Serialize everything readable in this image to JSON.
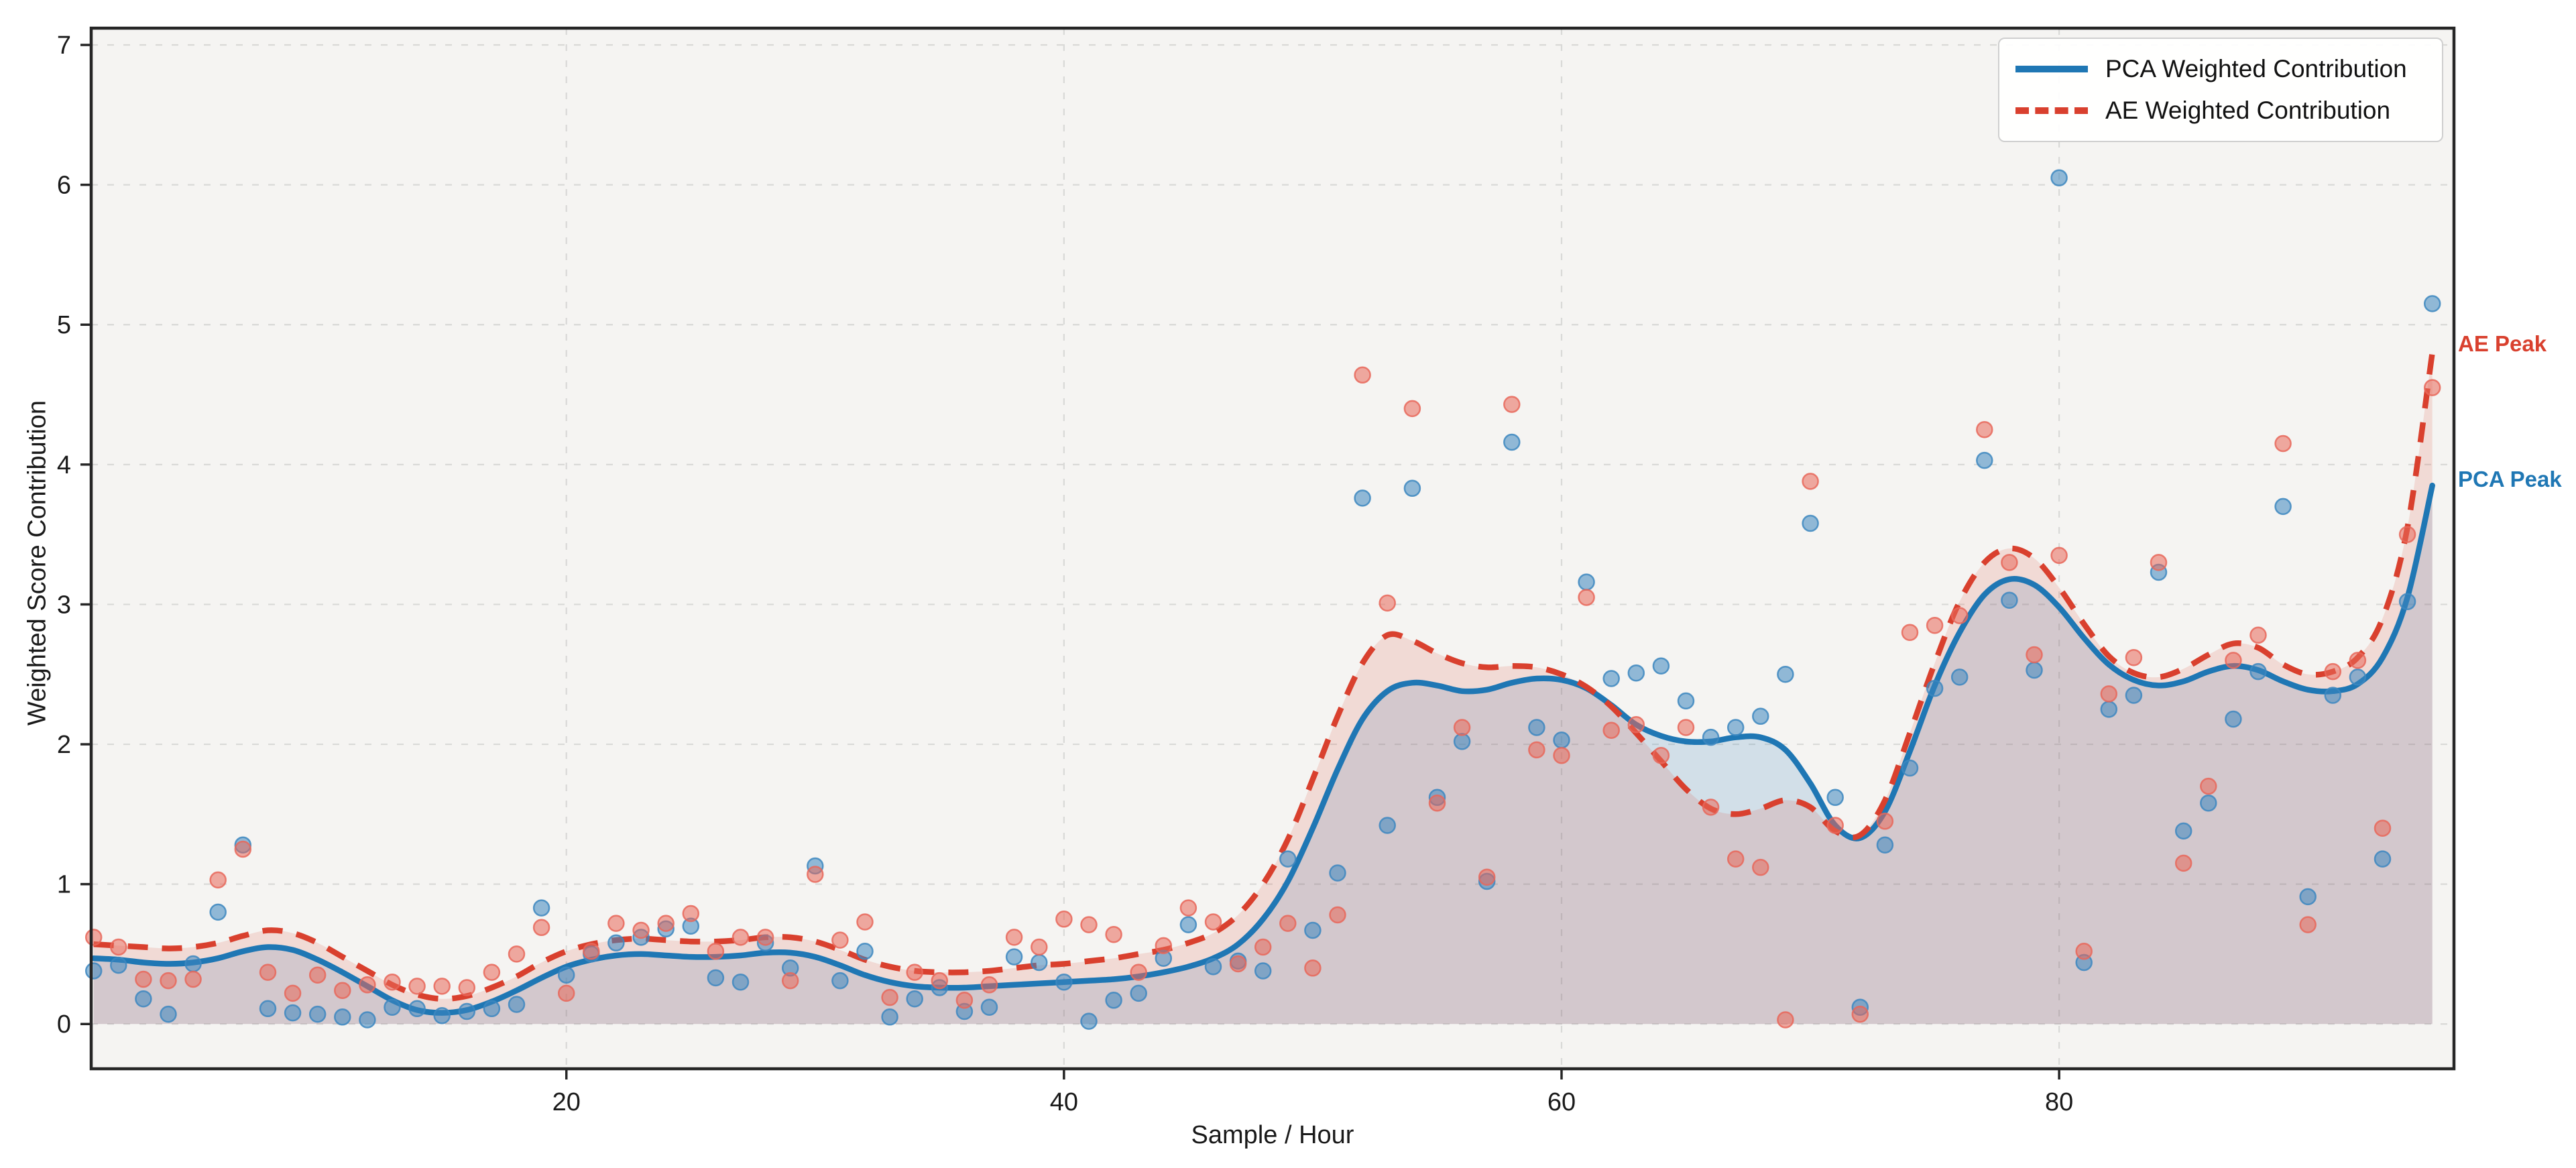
{
  "figure": {
    "background": "#ffffff",
    "plot_background": "#f5f4f2",
    "grid_color": "#d9d9d7",
    "spine_color": "#262626"
  },
  "legend": {
    "items": [
      {
        "label": "PCA Weighted Contribution",
        "style": "solid",
        "color": "#1f77b4"
      },
      {
        "label": "AE Weighted Contribution",
        "style": "dashed",
        "color": "#d9402e"
      }
    ]
  },
  "chart_data": {
    "type": "line",
    "subtype": "smoothed trend lines with jittered scatter and area fills",
    "title": "",
    "xlabel": "Sample / Hour",
    "ylabel": "Weighted Score Contribution",
    "xlim": [
      0.9,
      95.87
    ],
    "ylim": [
      -0.32,
      7.12
    ],
    "xticks": [
      20,
      40,
      60,
      80
    ],
    "yticks": [
      0,
      1,
      2,
      3,
      4,
      5,
      6,
      7
    ],
    "grid": true,
    "legend_position": "upper right",
    "x": [
      1,
      2,
      3,
      4,
      5,
      6,
      7,
      8,
      9,
      10,
      11,
      12,
      13,
      14,
      15,
      16,
      17,
      18,
      19,
      20,
      21,
      22,
      23,
      24,
      25,
      26,
      27,
      28,
      29,
      30,
      31,
      32,
      33,
      34,
      35,
      36,
      37,
      38,
      39,
      40,
      41,
      42,
      43,
      44,
      45,
      46,
      47,
      48,
      49,
      50,
      51,
      52,
      53,
      54,
      55,
      56,
      57,
      58,
      59,
      60,
      61,
      62,
      63,
      64,
      65,
      66,
      67,
      68,
      69,
      70,
      71,
      72,
      73,
      74,
      75,
      76,
      77,
      78,
      79,
      80,
      81,
      82,
      83,
      84,
      85,
      86,
      87,
      88,
      89,
      90,
      91,
      92,
      93,
      94,
      95
    ],
    "series": [
      {
        "name": "PCA Weighted Contribution",
        "line_color": "#1f77b4",
        "line_style": "solid",
        "marker_color": "#3d87bf",
        "fill_opacity": 0.16,
        "trend": [
          0.47,
          0.46,
          0.44,
          0.43,
          0.44,
          0.47,
          0.52,
          0.55,
          0.53,
          0.46,
          0.37,
          0.27,
          0.17,
          0.1,
          0.08,
          0.1,
          0.16,
          0.24,
          0.33,
          0.41,
          0.46,
          0.49,
          0.5,
          0.49,
          0.48,
          0.48,
          0.49,
          0.51,
          0.51,
          0.48,
          0.42,
          0.35,
          0.3,
          0.27,
          0.26,
          0.26,
          0.27,
          0.28,
          0.29,
          0.3,
          0.31,
          0.32,
          0.34,
          0.37,
          0.41,
          0.47,
          0.57,
          0.75,
          1.02,
          1.4,
          1.82,
          2.18,
          2.38,
          2.44,
          2.42,
          2.38,
          2.39,
          2.44,
          2.47,
          2.46,
          2.4,
          2.28,
          2.14,
          2.06,
          2.02,
          2.02,
          2.05,
          2.05,
          1.96,
          1.72,
          1.42,
          1.33,
          1.52,
          1.95,
          2.42,
          2.8,
          3.07,
          3.18,
          3.14,
          2.98,
          2.76,
          2.57,
          2.46,
          2.42,
          2.45,
          2.52,
          2.56,
          2.53,
          2.45,
          2.39,
          2.38,
          2.43,
          2.62,
          3.05,
          3.85
        ],
        "scatter": [
          0.38,
          0.42,
          0.18,
          0.07,
          0.43,
          0.8,
          1.28,
          0.11,
          0.08,
          0.07,
          0.05,
          0.03,
          0.12,
          0.11,
          0.06,
          0.09,
          0.11,
          0.14,
          0.83,
          0.35,
          0.5,
          0.58,
          0.62,
          0.68,
          0.7,
          0.33,
          0.3,
          0.58,
          0.4,
          1.13,
          0.31,
          0.52,
          0.05,
          0.18,
          0.26,
          0.09,
          0.12,
          0.48,
          0.44,
          0.3,
          0.02,
          0.17,
          0.22,
          0.47,
          0.71,
          0.41,
          0.45,
          0.38,
          1.18,
          0.67,
          1.08,
          3.76,
          1.42,
          3.83,
          1.62,
          2.02,
          1.02,
          4.16,
          2.12,
          2.03,
          3.16,
          2.47,
          2.51,
          2.56,
          2.31,
          2.05,
          2.12,
          2.2,
          2.5,
          3.58,
          1.62,
          0.12,
          1.28,
          1.83,
          2.4,
          2.48,
          4.03,
          3.03,
          2.53,
          6.05,
          0.44,
          2.25,
          2.35,
          3.23,
          1.38,
          1.58,
          2.18,
          2.52,
          3.7,
          0.91,
          2.35,
          2.48,
          1.18,
          3.02,
          5.15
        ]
      },
      {
        "name": "AE Weighted Contribution",
        "line_color": "#d9402e",
        "line_style": "dashed",
        "marker_color": "#e8675a",
        "fill_opacity": 0.14,
        "trend": [
          0.57,
          0.56,
          0.55,
          0.54,
          0.55,
          0.58,
          0.63,
          0.67,
          0.65,
          0.58,
          0.48,
          0.38,
          0.28,
          0.21,
          0.18,
          0.2,
          0.26,
          0.34,
          0.44,
          0.52,
          0.57,
          0.6,
          0.61,
          0.6,
          0.59,
          0.59,
          0.6,
          0.62,
          0.62,
          0.59,
          0.53,
          0.46,
          0.41,
          0.38,
          0.37,
          0.37,
          0.38,
          0.4,
          0.42,
          0.43,
          0.45,
          0.47,
          0.5,
          0.53,
          0.58,
          0.65,
          0.78,
          1.0,
          1.32,
          1.75,
          2.2,
          2.58,
          2.78,
          2.74,
          2.65,
          2.58,
          2.55,
          2.56,
          2.55,
          2.5,
          2.41,
          2.27,
          2.08,
          1.88,
          1.68,
          1.54,
          1.5,
          1.54,
          1.6,
          1.55,
          1.38,
          1.35,
          1.6,
          2.08,
          2.58,
          3.02,
          3.3,
          3.4,
          3.33,
          3.12,
          2.86,
          2.63,
          2.51,
          2.48,
          2.54,
          2.64,
          2.72,
          2.69,
          2.57,
          2.5,
          2.52,
          2.62,
          2.9,
          3.55,
          4.8
        ],
        "scatter": [
          0.62,
          0.55,
          0.32,
          0.31,
          0.32,
          1.03,
          1.25,
          0.37,
          0.22,
          0.35,
          0.24,
          0.28,
          0.3,
          0.27,
          0.27,
          0.26,
          0.37,
          0.5,
          0.69,
          0.22,
          0.52,
          0.72,
          0.67,
          0.72,
          0.79,
          0.52,
          0.62,
          0.62,
          0.31,
          1.07,
          0.6,
          0.73,
          0.19,
          0.37,
          0.31,
          0.17,
          0.28,
          0.62,
          0.55,
          0.75,
          0.71,
          0.64,
          0.37,
          0.56,
          0.83,
          0.73,
          0.43,
          0.55,
          0.72,
          0.4,
          0.78,
          4.64,
          3.01,
          4.4,
          1.58,
          2.12,
          1.05,
          4.43,
          1.96,
          1.92,
          3.05,
          2.1,
          2.14,
          1.92,
          2.12,
          1.55,
          1.18,
          1.12,
          0.03,
          3.88,
          1.42,
          0.07,
          1.45,
          2.8,
          2.85,
          2.92,
          4.25,
          3.3,
          2.64,
          3.35,
          0.52,
          2.36,
          2.62,
          3.3,
          1.15,
          1.7,
          2.6,
          2.78,
          4.15,
          0.71,
          2.52,
          2.6,
          1.4,
          3.5,
          4.55
        ]
      }
    ],
    "annotations": [
      {
        "text": "AE Peak",
        "color": "#d9402e",
        "x": 96.0,
        "y": 4.85
      },
      {
        "text": "PCA Peak",
        "color": "#1f77b4",
        "x": 96.0,
        "y": 3.88
      }
    ]
  }
}
